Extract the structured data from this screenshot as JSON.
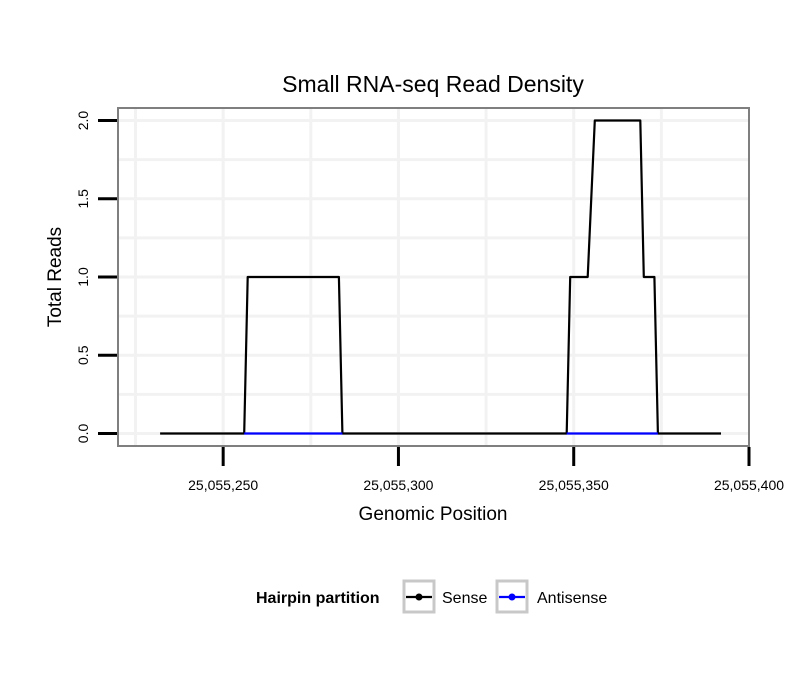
{
  "chart_data": {
    "type": "line",
    "title": "Small RNA-seq Read Density",
    "xlabel": "Genomic Position",
    "ylabel": "Total Reads",
    "xlim": [
      25055220,
      25055400
    ],
    "ylim": [
      -0.08,
      2.08
    ],
    "x_ticks": [
      25055250,
      25055300,
      25055350,
      25055400
    ],
    "x_tick_labels": [
      "25,055,250",
      "25,055,300",
      "25,055,350",
      "25,055,400"
    ],
    "y_ticks": [
      0,
      0.5,
      1,
      1.5,
      2
    ],
    "y_tick_labels": [
      "0.0",
      "0.5",
      "1.0",
      "1.5",
      "2.0"
    ],
    "grid": true,
    "legend": {
      "title": "Hairpin partition",
      "position": "bottom",
      "entries": [
        "Sense",
        "Antisense"
      ]
    },
    "series": [
      {
        "name": "Sense",
        "color": "#000000",
        "x": [
          25055232,
          25055256,
          25055257,
          25055283,
          25055284,
          25055348,
          25055349,
          25055354,
          25055356,
          25055369,
          25055370,
          25055373,
          25055374,
          25055392
        ],
        "values": [
          0,
          0,
          1,
          1,
          0,
          0,
          1,
          1,
          2,
          2,
          1,
          1,
          0,
          0
        ]
      },
      {
        "name": "Antisense",
        "color": "#0000ff",
        "x": [
          25055256,
          25055284,
          25055348,
          25055374
        ],
        "values": [
          0,
          0,
          0,
          0
        ],
        "segments": [
          [
            0,
            1
          ],
          [
            2,
            3
          ]
        ]
      }
    ]
  }
}
